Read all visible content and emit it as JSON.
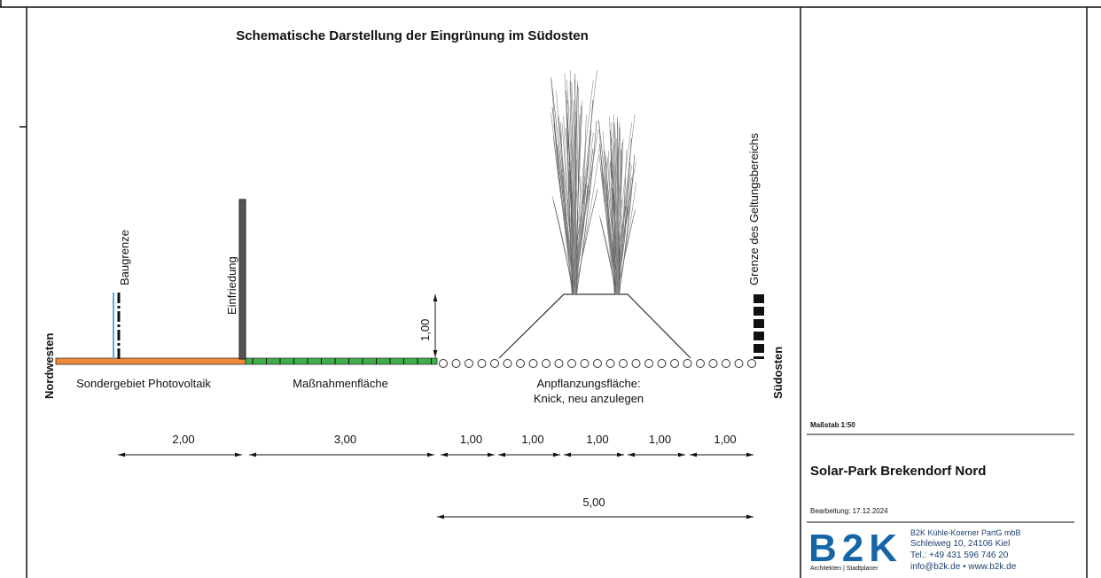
{
  "title": "Schematische Darstellung der Eingrünung im Südosten",
  "side_labels": {
    "left": "Nordwesten",
    "right": "Südosten"
  },
  "annotations": {
    "baugrenze": "Baugrenze",
    "einfriedung": "Einfriedung",
    "grenze": "Grenze des Geltungsbereichs",
    "height": "1,00"
  },
  "zones": [
    "Sondergebiet Photovoltaik",
    "Maßnahmenfläche",
    "Anpflanzungsfläche:",
    "Knick, neu anzulegen"
  ],
  "dimensions": [
    "2,00",
    "3,00",
    "1,00",
    "1,00",
    "1,00",
    "1,00",
    "1,00"
  ],
  "total_dimension": "5,00",
  "title_block": {
    "scale": "Maßstab 1:50",
    "project": "Solar-Park Brekendorf Nord",
    "date": "Bearbeitung: 17.12.2024",
    "logo": "B2K",
    "logo_subtitle": "Architekten | Stadtplaner",
    "company": [
      "B2K Kühle-Koerner PartG mbB",
      "Schleiweg 10, 24106 Kiel",
      "Tel.: +49 431 596 746 20",
      "info@b2k.de • www.b2k.de"
    ]
  }
}
